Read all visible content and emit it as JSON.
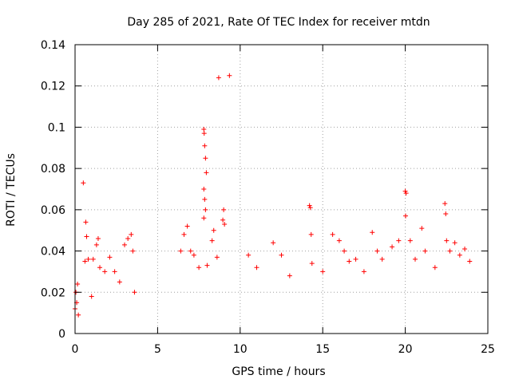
{
  "chart_data": {
    "type": "scatter",
    "title": "Day 285 of 2021, Rate Of TEC Index for receiver mtdn",
    "xlabel": "GPS time / hours",
    "ylabel": "ROTI / TECUs",
    "xlim": [
      0,
      25
    ],
    "ylim": [
      0,
      0.14
    ],
    "xticks": [
      0,
      5,
      10,
      15,
      20,
      25
    ],
    "yticks": [
      0,
      0.02,
      0.04,
      0.06,
      0.08,
      0.1,
      0.12,
      0.14
    ],
    "xtick_labels": [
      "0",
      "5",
      "10",
      "15",
      "20",
      "25"
    ],
    "ytick_labels": [
      "0",
      "0.02",
      "0.04",
      "0.06",
      "0.08",
      "0.1",
      "0.12",
      "0.14"
    ],
    "grid": true,
    "marker": "plus",
    "color": "#ff0000",
    "series": [
      {
        "values": [
          [
            0.0,
            0.012
          ],
          [
            0.05,
            0.02
          ],
          [
            0.1,
            0.015
          ],
          [
            0.15,
            0.024
          ],
          [
            0.2,
            0.009
          ],
          [
            0.5,
            0.073
          ],
          [
            0.6,
            0.035
          ],
          [
            0.65,
            0.054
          ],
          [
            0.7,
            0.047
          ],
          [
            0.8,
            0.036
          ],
          [
            1.0,
            0.018
          ],
          [
            1.1,
            0.036
          ],
          [
            1.3,
            0.043
          ],
          [
            1.4,
            0.046
          ],
          [
            1.5,
            0.032
          ],
          [
            1.8,
            0.03
          ],
          [
            2.1,
            0.037
          ],
          [
            2.4,
            0.03
          ],
          [
            2.7,
            0.025
          ],
          [
            3.0,
            0.043
          ],
          [
            3.2,
            0.046
          ],
          [
            3.4,
            0.048
          ],
          [
            3.5,
            0.04
          ],
          [
            3.6,
            0.02
          ],
          [
            6.4,
            0.04
          ],
          [
            6.6,
            0.048
          ],
          [
            6.8,
            0.052
          ],
          [
            7.0,
            0.04
          ],
          [
            7.2,
            0.038
          ],
          [
            7.5,
            0.032
          ],
          [
            7.8,
            0.099
          ],
          [
            7.82,
            0.097
          ],
          [
            7.85,
            0.091
          ],
          [
            7.9,
            0.085
          ],
          [
            7.95,
            0.078
          ],
          [
            7.8,
            0.07
          ],
          [
            7.85,
            0.065
          ],
          [
            7.9,
            0.06
          ],
          [
            7.8,
            0.056
          ],
          [
            8.0,
            0.033
          ],
          [
            8.3,
            0.045
          ],
          [
            8.4,
            0.05
          ],
          [
            8.6,
            0.037
          ],
          [
            8.7,
            0.124
          ],
          [
            9.0,
            0.06
          ],
          [
            8.95,
            0.055
          ],
          [
            9.05,
            0.053
          ],
          [
            9.35,
            0.125
          ],
          [
            10.5,
            0.038
          ],
          [
            11.0,
            0.032
          ],
          [
            12.0,
            0.044
          ],
          [
            12.5,
            0.038
          ],
          [
            13.0,
            0.028
          ],
          [
            14.2,
            0.062
          ],
          [
            14.25,
            0.061
          ],
          [
            14.3,
            0.048
          ],
          [
            14.35,
            0.034
          ],
          [
            15.0,
            0.03
          ],
          [
            15.6,
            0.048
          ],
          [
            16.0,
            0.045
          ],
          [
            16.3,
            0.04
          ],
          [
            16.6,
            0.035
          ],
          [
            17.0,
            0.036
          ],
          [
            17.5,
            0.03
          ],
          [
            18.0,
            0.049
          ],
          [
            18.3,
            0.04
          ],
          [
            18.6,
            0.036
          ],
          [
            19.2,
            0.042
          ],
          [
            19.6,
            0.045
          ],
          [
            20.0,
            0.069
          ],
          [
            20.05,
            0.068
          ],
          [
            20.02,
            0.057
          ],
          [
            20.3,
            0.045
          ],
          [
            20.6,
            0.036
          ],
          [
            21.0,
            0.051
          ],
          [
            21.2,
            0.04
          ],
          [
            21.8,
            0.032
          ],
          [
            22.4,
            0.063
          ],
          [
            22.45,
            0.058
          ],
          [
            22.5,
            0.045
          ],
          [
            22.7,
            0.04
          ],
          [
            23.0,
            0.044
          ],
          [
            23.3,
            0.038
          ],
          [
            23.6,
            0.041
          ],
          [
            23.9,
            0.035
          ]
        ]
      }
    ]
  }
}
